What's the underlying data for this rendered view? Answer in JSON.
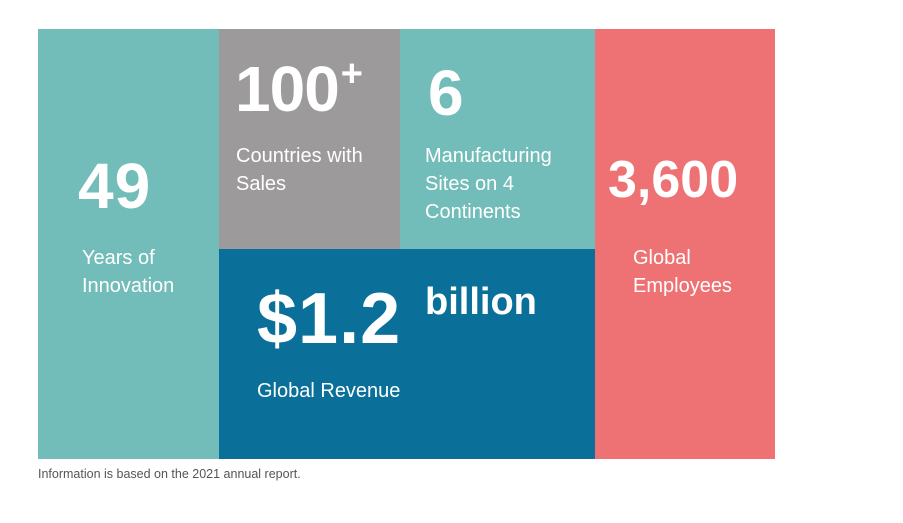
{
  "stats": {
    "years": {
      "value": "49",
      "label_line1": "Years of",
      "label_line2": "Innovation"
    },
    "countries": {
      "value": "100",
      "value_suffix": "+",
      "label_line1": "Countries with",
      "label_line2": "Sales"
    },
    "sites": {
      "value": "6",
      "label_line1": "Manufacturing",
      "label_line2": "Sites on 4",
      "label_line3": "Continents"
    },
    "revenue": {
      "value": "$1.2",
      "value_suffix": "billion",
      "label": "Global Revenue"
    },
    "employees": {
      "value": "3,600",
      "label_line1": "Global",
      "label_line2": "Employees"
    }
  },
  "footnote": "Information is based on the 2021 annual report.",
  "colors": {
    "teal": "#72bdb9",
    "gray": "#9d9a9c",
    "blue": "#0a7099",
    "coral": "#ee7173"
  }
}
